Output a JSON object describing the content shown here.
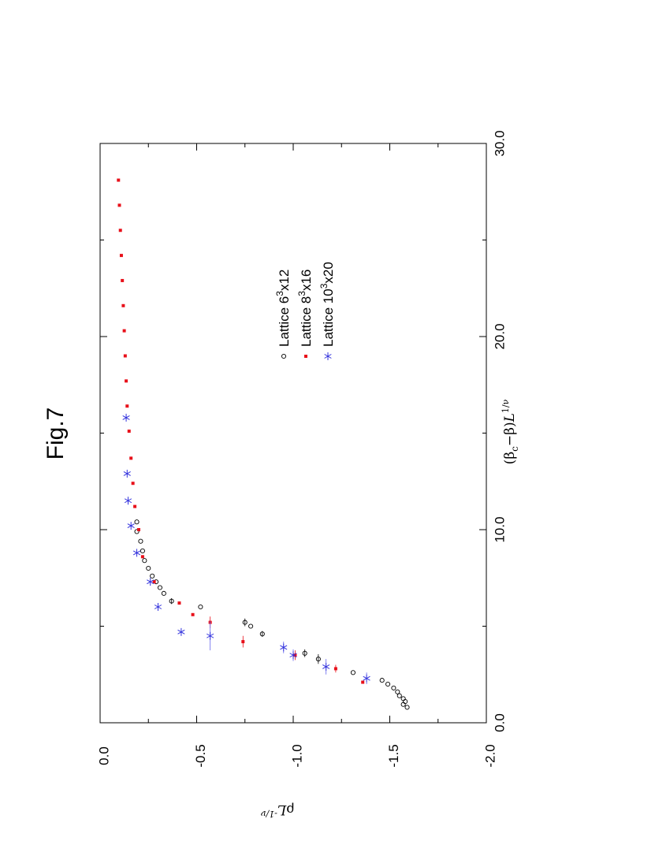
{
  "figure": {
    "title": "Fig.7"
  },
  "chart_data": {
    "type": "scatter",
    "orientation": "rotated-90-counterclockwise",
    "title": "Fig.7",
    "xlabel": "(β_c−β)L^{1/ν}",
    "xlabel_parts": {
      "pre": "(β",
      "sub": "c",
      "mid": "−β)",
      "L": "L",
      "sup": "1/ν"
    },
    "ylabel": "ρL^{−1/ν}",
    "ylabel_parts": {
      "rho": "ρ",
      "L": "L",
      "sup": "-1/ν"
    },
    "xlim": [
      0,
      30
    ],
    "ylim": [
      -2,
      0
    ],
    "x_ticks": [
      0,
      10,
      20,
      30
    ],
    "x_tick_labels": [
      "0.0",
      "10.0",
      "20.0",
      "30.0"
    ],
    "x_minor_ticks": [
      5,
      15,
      25
    ],
    "y_ticks": [
      0,
      -0.5,
      -1,
      -1.5,
      -2
    ],
    "y_tick_labels": [
      "0.0",
      "-0.5",
      "-1.0",
      "-1.5",
      "-2.0"
    ],
    "grid": false,
    "legend_position": "upper-right",
    "series": [
      {
        "name": "Lattice 6",
        "legend_parts": {
          "base": "Lattice 6",
          "sup": "3",
          "rest": "x12"
        },
        "marker": "open-circle",
        "color": "#000000",
        "points": [
          [
            0.8,
            -1.59
          ],
          [
            0.95,
            -1.57
          ],
          [
            1.1,
            -1.58
          ],
          [
            1.25,
            -1.57
          ],
          [
            1.4,
            -1.55
          ],
          [
            1.6,
            -1.54
          ],
          [
            1.8,
            -1.52
          ],
          [
            2.0,
            -1.49
          ],
          [
            2.2,
            -1.46
          ],
          [
            2.6,
            -1.31
          ],
          [
            3.3,
            -1.13
          ],
          [
            3.6,
            -1.06
          ],
          [
            4.6,
            -0.84
          ],
          [
            5.0,
            -0.78
          ],
          [
            5.2,
            -0.75
          ],
          [
            6.0,
            -0.52
          ],
          [
            6.3,
            -0.37
          ],
          [
            6.7,
            -0.33
          ],
          [
            7.0,
            -0.31
          ],
          [
            7.3,
            -0.29
          ],
          [
            7.6,
            -0.27
          ],
          [
            8.0,
            -0.25
          ],
          [
            8.4,
            -0.23
          ],
          [
            8.9,
            -0.22
          ],
          [
            9.4,
            -0.21
          ],
          [
            9.9,
            -0.19
          ],
          [
            10.4,
            -0.19
          ]
        ],
        "xerr": [
          [
            3.3,
            -1.13,
            0.25
          ],
          [
            3.6,
            -1.06,
            0.2
          ],
          [
            5.2,
            -0.75,
            0.2
          ],
          [
            6.3,
            -0.37,
            0.15
          ],
          [
            4.6,
            -0.84,
            0.15
          ]
        ]
      },
      {
        "name": "Lattice 8",
        "legend_parts": {
          "base": "Lattice 8",
          "sup": "3",
          "rest": "x16"
        },
        "marker": "filled-square",
        "color": "#e8101a",
        "points": [
          [
            2.1,
            -1.36
          ],
          [
            2.8,
            -1.22
          ],
          [
            3.5,
            -1.01
          ],
          [
            4.2,
            -0.74
          ],
          [
            5.2,
            -0.57
          ],
          [
            5.6,
            -0.48
          ],
          [
            6.2,
            -0.41
          ],
          [
            7.3,
            -0.28
          ],
          [
            8.6,
            -0.22
          ],
          [
            10.0,
            -0.2
          ],
          [
            11.2,
            -0.18
          ],
          [
            12.4,
            -0.17
          ],
          [
            13.7,
            -0.16
          ],
          [
            15.1,
            -0.15
          ],
          [
            16.4,
            -0.14
          ],
          [
            17.7,
            -0.135
          ],
          [
            19.0,
            -0.13
          ],
          [
            20.3,
            -0.125
          ],
          [
            21.6,
            -0.12
          ],
          [
            22.9,
            -0.115
          ],
          [
            24.2,
            -0.11
          ],
          [
            25.5,
            -0.105
          ],
          [
            26.8,
            -0.1
          ],
          [
            28.1,
            -0.095
          ]
        ],
        "xerr": [
          [
            4.2,
            -0.74,
            0.3
          ],
          [
            3.5,
            -1.01,
            0.25
          ],
          [
            2.8,
            -1.22,
            0.2
          ],
          [
            5.2,
            -0.57,
            0.3
          ]
        ]
      },
      {
        "name": "Lattice 10",
        "legend_parts": {
          "base": "Lattice 10",
          "sup": "3",
          "rest": "x20"
        },
        "marker": "asterisk",
        "color": "#3333dd",
        "points": [
          [
            2.3,
            -1.38
          ],
          [
            2.9,
            -1.17
          ],
          [
            3.5,
            -1.0
          ],
          [
            3.9,
            -0.95
          ],
          [
            4.5,
            -0.57
          ],
          [
            4.7,
            -0.42
          ],
          [
            6.0,
            -0.3
          ],
          [
            7.3,
            -0.26
          ],
          [
            8.8,
            -0.19
          ],
          [
            10.2,
            -0.16
          ],
          [
            11.5,
            -0.145
          ],
          [
            12.9,
            -0.14
          ],
          [
            15.8,
            -0.135
          ]
        ],
        "xerr": [
          [
            4.5,
            -0.57,
            0.75
          ],
          [
            2.9,
            -1.17,
            0.4
          ],
          [
            3.5,
            -1.0,
            0.3
          ],
          [
            3.9,
            -0.95,
            0.3
          ],
          [
            2.3,
            -1.38,
            0.3
          ]
        ]
      }
    ]
  }
}
